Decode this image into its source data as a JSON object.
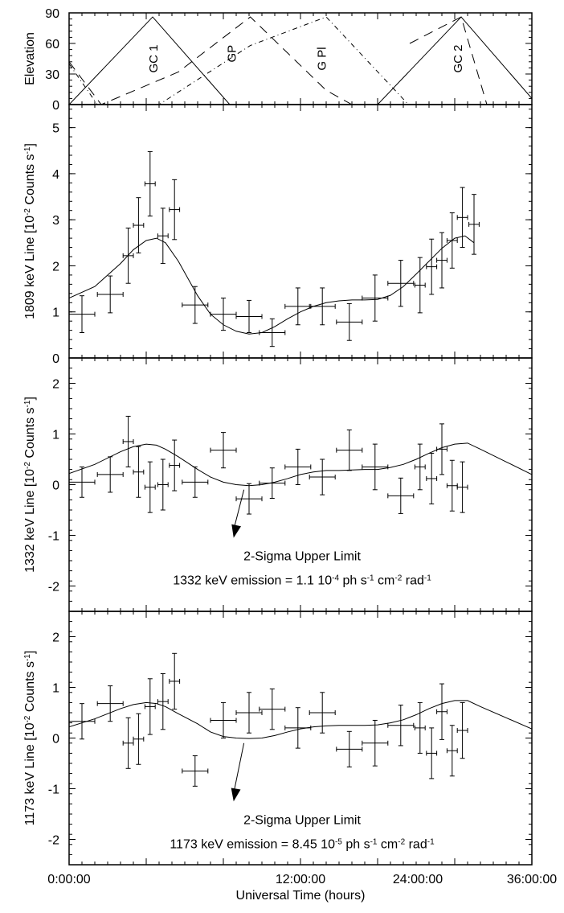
{
  "figure": {
    "xlabel": "Universal Time (hours)",
    "xticks": [
      "0:00:00",
      "12:00:00",
      "24:00:00",
      "36:00:00"
    ],
    "xlim": [
      0,
      36
    ]
  },
  "chart_data": [
    {
      "type": "line",
      "ylabel": "Elevation",
      "ylim": [
        0,
        90
      ],
      "yticks": [
        0,
        30,
        60,
        90
      ],
      "series": [
        {
          "name": "GC 1",
          "style": "solid",
          "x": [
            0,
            6.5,
            12.5
          ],
          "values": [
            0,
            86,
            0
          ]
        },
        {
          "name": "GP",
          "style": "dashed",
          "x": [
            0,
            2.5,
            8.5,
            14.1,
            20,
            22
          ],
          "values": [
            42,
            0,
            32,
            86,
            14,
            0
          ]
        },
        {
          "name": "G Pl",
          "style": "dashdot",
          "x": [
            0,
            2.2,
            7,
            14.1,
            20,
            26.4,
            28.5
          ],
          "values": [
            40,
            0,
            0,
            58,
            86,
            0,
            0
          ]
        },
        {
          "name": "GC 2",
          "style": "solid",
          "x": [
            24,
            30.5,
            36
          ],
          "values": [
            0,
            86,
            6
          ]
        },
        {
          "name": "GC 2 (dashed)",
          "style": "dashed",
          "x": [
            26.5,
            30.5,
            32.5
          ],
          "values": [
            60,
            86,
            0
          ]
        }
      ],
      "annotations": [
        {
          "text": "GC 1",
          "x": 6.5,
          "y": 45
        },
        {
          "text": "GP",
          "x": 12.6,
          "y": 50
        },
        {
          "text": "G Pl",
          "x": 19.6,
          "y": 45
        },
        {
          "text": "GC 2",
          "x": 30.2,
          "y": 45
        }
      ]
    },
    {
      "type": "scatter",
      "ylabel": "1809 keV Line [10",
      "ylabel_sup": "-2",
      "ylabel_tail": " Counts s",
      "ylabel_sup2": "-1",
      "ylabel_end": "]",
      "ylim": [
        0,
        5.5
      ],
      "yticks": [
        0,
        1,
        2,
        3,
        4,
        5
      ],
      "points": [
        {
          "x": 1.0,
          "y": 0.95,
          "xerr": 1.0,
          "yerr": 0.4
        },
        {
          "x": 3.2,
          "y": 1.38,
          "xerr": 1.0,
          "yerr": 0.4
        },
        {
          "x": 4.6,
          "y": 2.22,
          "xerr": 0.4,
          "yerr": 0.6
        },
        {
          "x": 5.4,
          "y": 2.88,
          "xerr": 0.4,
          "yerr": 0.6
        },
        {
          "x": 6.3,
          "y": 3.78,
          "xerr": 0.4,
          "yerr": 0.7
        },
        {
          "x": 7.3,
          "y": 2.65,
          "xerr": 0.4,
          "yerr": 0.6
        },
        {
          "x": 8.2,
          "y": 3.22,
          "xerr": 0.4,
          "yerr": 0.65
        },
        {
          "x": 9.8,
          "y": 1.15,
          "xerr": 1.0,
          "yerr": 0.4
        },
        {
          "x": 12.0,
          "y": 0.95,
          "xerr": 1.0,
          "yerr": 0.35
        },
        {
          "x": 14.0,
          "y": 0.9,
          "xerr": 1.0,
          "yerr": 0.35
        },
        {
          "x": 15.8,
          "y": 0.55,
          "xerr": 1.0,
          "yerr": 0.3
        },
        {
          "x": 17.8,
          "y": 1.12,
          "xerr": 1.0,
          "yerr": 0.4
        },
        {
          "x": 19.7,
          "y": 1.12,
          "xerr": 1.0,
          "yerr": 0.4
        },
        {
          "x": 21.8,
          "y": 0.78,
          "xerr": 1.0,
          "yerr": 0.4
        },
        {
          "x": 23.8,
          "y": 1.3,
          "xerr": 1.0,
          "yerr": 0.5
        },
        {
          "x": 25.8,
          "y": 1.62,
          "xerr": 1.0,
          "yerr": 0.5
        },
        {
          "x": 27.3,
          "y": 1.58,
          "xerr": 0.4,
          "yerr": 0.6
        },
        {
          "x": 28.2,
          "y": 1.98,
          "xerr": 0.4,
          "yerr": 0.6
        },
        {
          "x": 29.0,
          "y": 2.12,
          "xerr": 0.4,
          "yerr": 0.6
        },
        {
          "x": 29.8,
          "y": 2.55,
          "xerr": 0.4,
          "yerr": 0.6
        },
        {
          "x": 30.6,
          "y": 3.05,
          "xerr": 0.4,
          "yerr": 0.65
        },
        {
          "x": 31.5,
          "y": 2.9,
          "xerr": 0.4,
          "yerr": 0.65
        }
      ],
      "model": {
        "x": [
          0,
          2,
          4,
          5,
          6,
          6.8,
          7.5,
          8.5,
          10,
          11,
          12,
          13,
          14,
          15,
          16,
          17,
          18,
          19,
          20,
          21,
          22,
          23,
          24,
          25,
          26,
          27,
          28,
          29,
          30,
          30.8,
          31.5
        ],
        "values": [
          1.3,
          1.55,
          2.05,
          2.35,
          2.55,
          2.6,
          2.5,
          2.1,
          1.35,
          0.95,
          0.72,
          0.58,
          0.52,
          0.55,
          0.68,
          0.85,
          1.0,
          1.12,
          1.2,
          1.24,
          1.26,
          1.26,
          1.27,
          1.36,
          1.55,
          1.82,
          2.1,
          2.38,
          2.6,
          2.65,
          2.5
        ]
      }
    },
    {
      "type": "scatter",
      "ylabel": "1332 keV Line [10",
      "ylabel_sup": "-2",
      "ylabel_tail": " Counts s",
      "ylabel_sup2": "-1",
      "ylabel_end": "]",
      "ylim": [
        -2.5,
        2.5
      ],
      "yticks": [
        -2,
        -1,
        0,
        1,
        2
      ],
      "points": [
        {
          "x": 1.0,
          "y": 0.05,
          "xerr": 1.0,
          "yerr": 0.3
        },
        {
          "x": 3.2,
          "y": 0.2,
          "xerr": 1.0,
          "yerr": 0.35
        },
        {
          "x": 4.6,
          "y": 0.85,
          "xerr": 0.4,
          "yerr": 0.5
        },
        {
          "x": 5.4,
          "y": 0.25,
          "xerr": 0.4,
          "yerr": 0.5
        },
        {
          "x": 6.3,
          "y": -0.05,
          "xerr": 0.4,
          "yerr": 0.5
        },
        {
          "x": 7.3,
          "y": 0.0,
          "xerr": 0.4,
          "yerr": 0.5
        },
        {
          "x": 8.2,
          "y": 0.38,
          "xerr": 0.4,
          "yerr": 0.5
        },
        {
          "x": 9.8,
          "y": 0.05,
          "xerr": 1.0,
          "yerr": 0.3
        },
        {
          "x": 12.0,
          "y": 0.68,
          "xerr": 1.0,
          "yerr": 0.35
        },
        {
          "x": 14.0,
          "y": -0.28,
          "xerr": 1.0,
          "yerr": 0.3
        },
        {
          "x": 15.8,
          "y": 0.03,
          "xerr": 1.0,
          "yerr": 0.3
        },
        {
          "x": 17.8,
          "y": 0.35,
          "xerr": 1.0,
          "yerr": 0.35
        },
        {
          "x": 19.7,
          "y": 0.15,
          "xerr": 1.0,
          "yerr": 0.35
        },
        {
          "x": 21.8,
          "y": 0.68,
          "xerr": 1.0,
          "yerr": 0.4
        },
        {
          "x": 23.8,
          "y": 0.35,
          "xerr": 1.0,
          "yerr": 0.45
        },
        {
          "x": 25.8,
          "y": -0.22,
          "xerr": 1.0,
          "yerr": 0.35
        },
        {
          "x": 27.3,
          "y": 0.35,
          "xerr": 0.4,
          "yerr": 0.45
        },
        {
          "x": 28.2,
          "y": 0.12,
          "xerr": 0.4,
          "yerr": 0.5
        },
        {
          "x": 29.0,
          "y": 0.7,
          "xerr": 0.4,
          "yerr": 0.5
        },
        {
          "x": 29.8,
          "y": -0.02,
          "xerr": 0.4,
          "yerr": 0.5
        },
        {
          "x": 30.6,
          "y": -0.05,
          "xerr": 0.4,
          "yerr": 0.5
        }
      ],
      "model": {
        "x": [
          0,
          2,
          4,
          5,
          6,
          6.8,
          7.5,
          8.5,
          10,
          11,
          12,
          13,
          14,
          15,
          16,
          17,
          18,
          19,
          20,
          21,
          22,
          23,
          24,
          25,
          26,
          27,
          28,
          29,
          30,
          31,
          32,
          34,
          36
        ],
        "values": [
          0.22,
          0.4,
          0.65,
          0.75,
          0.8,
          0.78,
          0.7,
          0.55,
          0.3,
          0.15,
          0.05,
          0.0,
          -0.02,
          0.0,
          0.05,
          0.12,
          0.2,
          0.25,
          0.28,
          0.28,
          0.29,
          0.3,
          0.3,
          0.34,
          0.4,
          0.5,
          0.62,
          0.73,
          0.8,
          0.82,
          0.7,
          0.45,
          0.2
        ]
      },
      "arrow": {
        "x1": 13.6,
        "y1": -0.1,
        "x2": 12.8,
        "y2": -1.05
      },
      "annotations": {
        "line1": "2-Sigma Upper Limit",
        "line2a": "1332 keV emission = 1.1 10",
        "line2b": "-4",
        "line2c": "  ph s",
        "line2d": "-1",
        "line2e": " cm",
        "line2f": "-2",
        "line2g": " rad",
        "line2h": "-1"
      }
    },
    {
      "type": "scatter",
      "ylabel": "1173 keV Line [10",
      "ylabel_sup": "-2",
      "ylabel_tail": " Counts s",
      "ylabel_sup2": "-1",
      "ylabel_end": "]",
      "ylim": [
        -2.5,
        2.5
      ],
      "yticks": [
        -2,
        -1,
        0,
        1,
        2
      ],
      "points": [
        {
          "x": 1.0,
          "y": 0.33,
          "xerr": 1.0,
          "yerr": 0.35
        },
        {
          "x": 3.2,
          "y": 0.68,
          "xerr": 1.0,
          "yerr": 0.35
        },
        {
          "x": 4.6,
          "y": -0.1,
          "xerr": 0.4,
          "yerr": 0.5
        },
        {
          "x": 5.4,
          "y": -0.02,
          "xerr": 0.4,
          "yerr": 0.5
        },
        {
          "x": 6.3,
          "y": 0.62,
          "xerr": 0.4,
          "yerr": 0.55
        },
        {
          "x": 7.3,
          "y": 0.72,
          "xerr": 0.4,
          "yerr": 0.55
        },
        {
          "x": 8.2,
          "y": 1.12,
          "xerr": 0.4,
          "yerr": 0.55
        },
        {
          "x": 9.8,
          "y": -0.65,
          "xerr": 1.0,
          "yerr": 0.3
        },
        {
          "x": 12.0,
          "y": 0.35,
          "xerr": 1.0,
          "yerr": 0.35
        },
        {
          "x": 14.0,
          "y": 0.5,
          "xerr": 1.0,
          "yerr": 0.4
        },
        {
          "x": 15.8,
          "y": 0.57,
          "xerr": 1.0,
          "yerr": 0.4
        },
        {
          "x": 17.8,
          "y": 0.2,
          "xerr": 1.0,
          "yerr": 0.4
        },
        {
          "x": 19.7,
          "y": 0.5,
          "xerr": 1.0,
          "yerr": 0.4
        },
        {
          "x": 21.8,
          "y": -0.22,
          "xerr": 1.0,
          "yerr": 0.35
        },
        {
          "x": 23.8,
          "y": -0.1,
          "xerr": 1.0,
          "yerr": 0.45
        },
        {
          "x": 25.8,
          "y": 0.25,
          "xerr": 1.0,
          "yerr": 0.4
        },
        {
          "x": 27.3,
          "y": 0.2,
          "xerr": 0.4,
          "yerr": 0.5
        },
        {
          "x": 28.2,
          "y": -0.3,
          "xerr": 0.4,
          "yerr": 0.5
        },
        {
          "x": 29.0,
          "y": 0.52,
          "xerr": 0.4,
          "yerr": 0.55
        },
        {
          "x": 29.8,
          "y": -0.25,
          "xerr": 0.4,
          "yerr": 0.5
        },
        {
          "x": 30.6,
          "y": 0.15,
          "xerr": 0.4,
          "yerr": 0.55
        }
      ],
      "model": {
        "x": [
          0,
          2,
          4,
          5,
          6,
          6.8,
          7.5,
          8.5,
          10,
          11,
          12,
          13,
          14,
          15,
          16,
          17,
          18,
          19,
          20,
          21,
          22,
          23,
          24,
          25,
          26,
          27,
          28,
          29,
          30,
          31,
          32,
          34,
          36
        ],
        "values": [
          0.22,
          0.38,
          0.58,
          0.66,
          0.7,
          0.68,
          0.62,
          0.48,
          0.28,
          0.12,
          0.03,
          0.0,
          -0.01,
          0.0,
          0.05,
          0.12,
          0.18,
          0.22,
          0.24,
          0.25,
          0.25,
          0.25,
          0.26,
          0.3,
          0.36,
          0.46,
          0.58,
          0.68,
          0.74,
          0.74,
          0.62,
          0.4,
          0.18
        ]
      },
      "arrow": {
        "x1": 13.6,
        "y1": -0.1,
        "x2": 12.8,
        "y2": -1.25
      },
      "annotations": {
        "line1": "2-Sigma Upper Limit",
        "line2a": "1173 keV emission = 8.45 10",
        "line2b": "-5",
        "line2c": "  ph s",
        "line2d": "-1",
        "line2e": " cm",
        "line2f": "-2",
        "line2g": " rad",
        "line2h": "-1"
      }
    }
  ]
}
